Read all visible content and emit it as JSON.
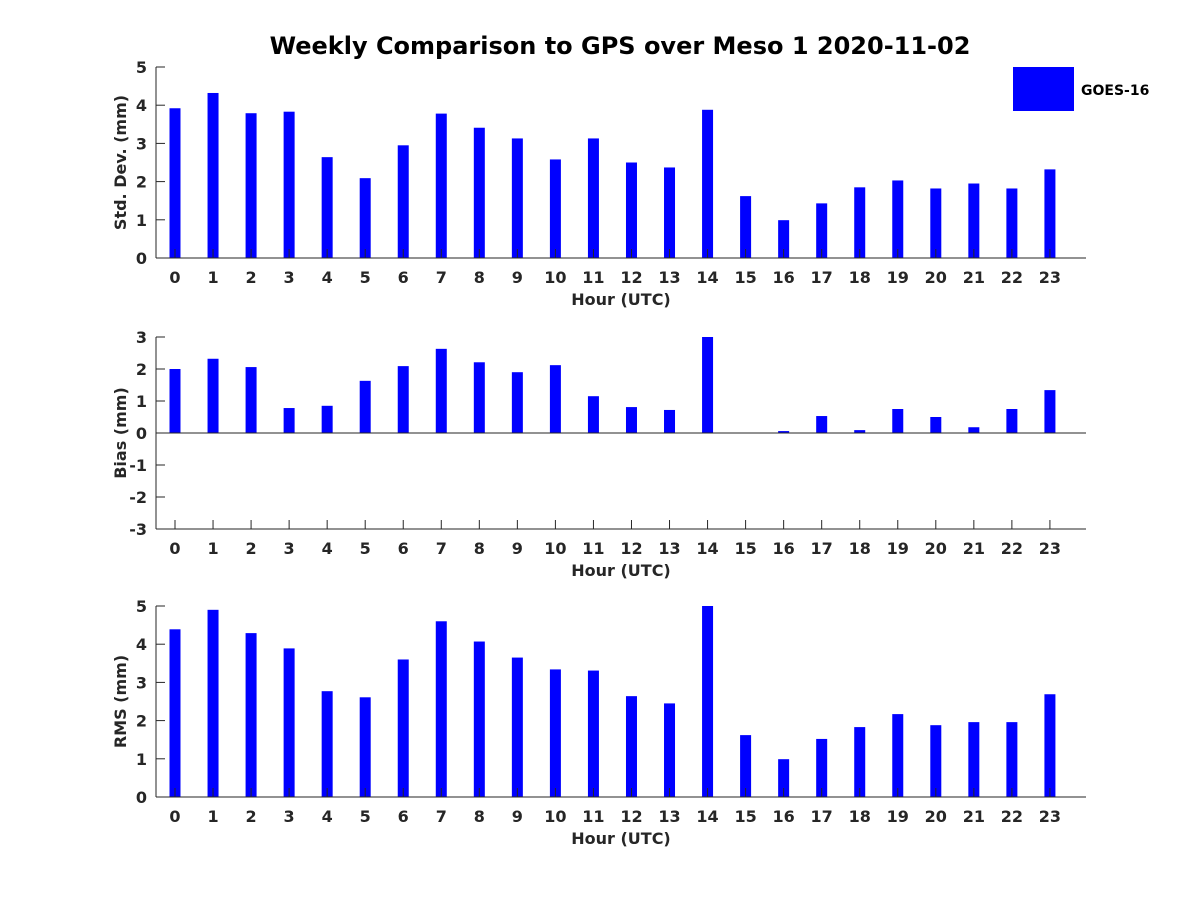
{
  "colors": {
    "bar": "#0000FF",
    "axis": "#262626",
    "background": "#FFFFFF"
  },
  "legend": {
    "label": "GOES-16",
    "placement": "top-right"
  },
  "chart_data": [
    {
      "type": "bar",
      "title": "Weekly Comparison to GPS over Meso 1 2020-11-02",
      "xlabel": "Hour (UTC)",
      "ylabel": "Std. Dev. (mm)",
      "categories": [
        "0",
        "1",
        "2",
        "3",
        "4",
        "5",
        "6",
        "7",
        "8",
        "9",
        "10",
        "11",
        "12",
        "13",
        "14",
        "15",
        "16",
        "17",
        "18",
        "19",
        "20",
        "21",
        "22",
        "23"
      ],
      "series": [
        {
          "name": "GOES-16",
          "values": [
            3.92,
            4.32,
            3.79,
            3.83,
            2.64,
            2.09,
            2.95,
            3.78,
            3.41,
            3.13,
            2.58,
            3.13,
            2.5,
            2.37,
            3.88,
            1.62,
            0.99,
            1.43,
            1.85,
            2.03,
            1.82,
            1.95,
            1.82,
            2.32
          ]
        }
      ],
      "ylim": [
        0,
        5
      ],
      "yticks": [
        "0",
        "1",
        "2",
        "3",
        "4",
        "5"
      ]
    },
    {
      "type": "bar",
      "title": "",
      "xlabel": "Hour (UTC)",
      "ylabel": "Bias (mm)",
      "categories": [
        "0",
        "1",
        "2",
        "3",
        "4",
        "5",
        "6",
        "7",
        "8",
        "9",
        "10",
        "11",
        "12",
        "13",
        "14",
        "15",
        "16",
        "17",
        "18",
        "19",
        "20",
        "21",
        "22",
        "23"
      ],
      "series": [
        {
          "name": "GOES-16",
          "values": [
            2.0,
            2.32,
            2.06,
            0.78,
            0.85,
            1.63,
            2.09,
            2.63,
            2.21,
            1.9,
            2.12,
            1.15,
            0.81,
            0.72,
            3.0,
            0.0,
            0.06,
            0.53,
            0.09,
            0.75,
            0.5,
            0.18,
            0.75,
            1.34
          ]
        }
      ],
      "ylim": [
        -3,
        3
      ],
      "yticks": [
        "-3",
        "-2",
        "-1",
        "0",
        "1",
        "2",
        "3"
      ]
    },
    {
      "type": "bar",
      "title": "",
      "xlabel": "Hour (UTC)",
      "ylabel": "RMS (mm)",
      "categories": [
        "0",
        "1",
        "2",
        "3",
        "4",
        "5",
        "6",
        "7",
        "8",
        "9",
        "10",
        "11",
        "12",
        "13",
        "14",
        "15",
        "16",
        "17",
        "18",
        "19",
        "20",
        "21",
        "22",
        "23"
      ],
      "series": [
        {
          "name": "GOES-16",
          "values": [
            4.39,
            4.9,
            4.29,
            3.89,
            2.77,
            2.61,
            3.6,
            4.6,
            4.07,
            3.65,
            3.34,
            3.31,
            2.64,
            2.45,
            5.0,
            1.62,
            0.99,
            1.52,
            1.83,
            2.17,
            1.88,
            1.96,
            1.96,
            2.69
          ]
        }
      ],
      "ylim": [
        0,
        5
      ],
      "yticks": [
        "0",
        "1",
        "2",
        "3",
        "4",
        "5"
      ]
    }
  ]
}
